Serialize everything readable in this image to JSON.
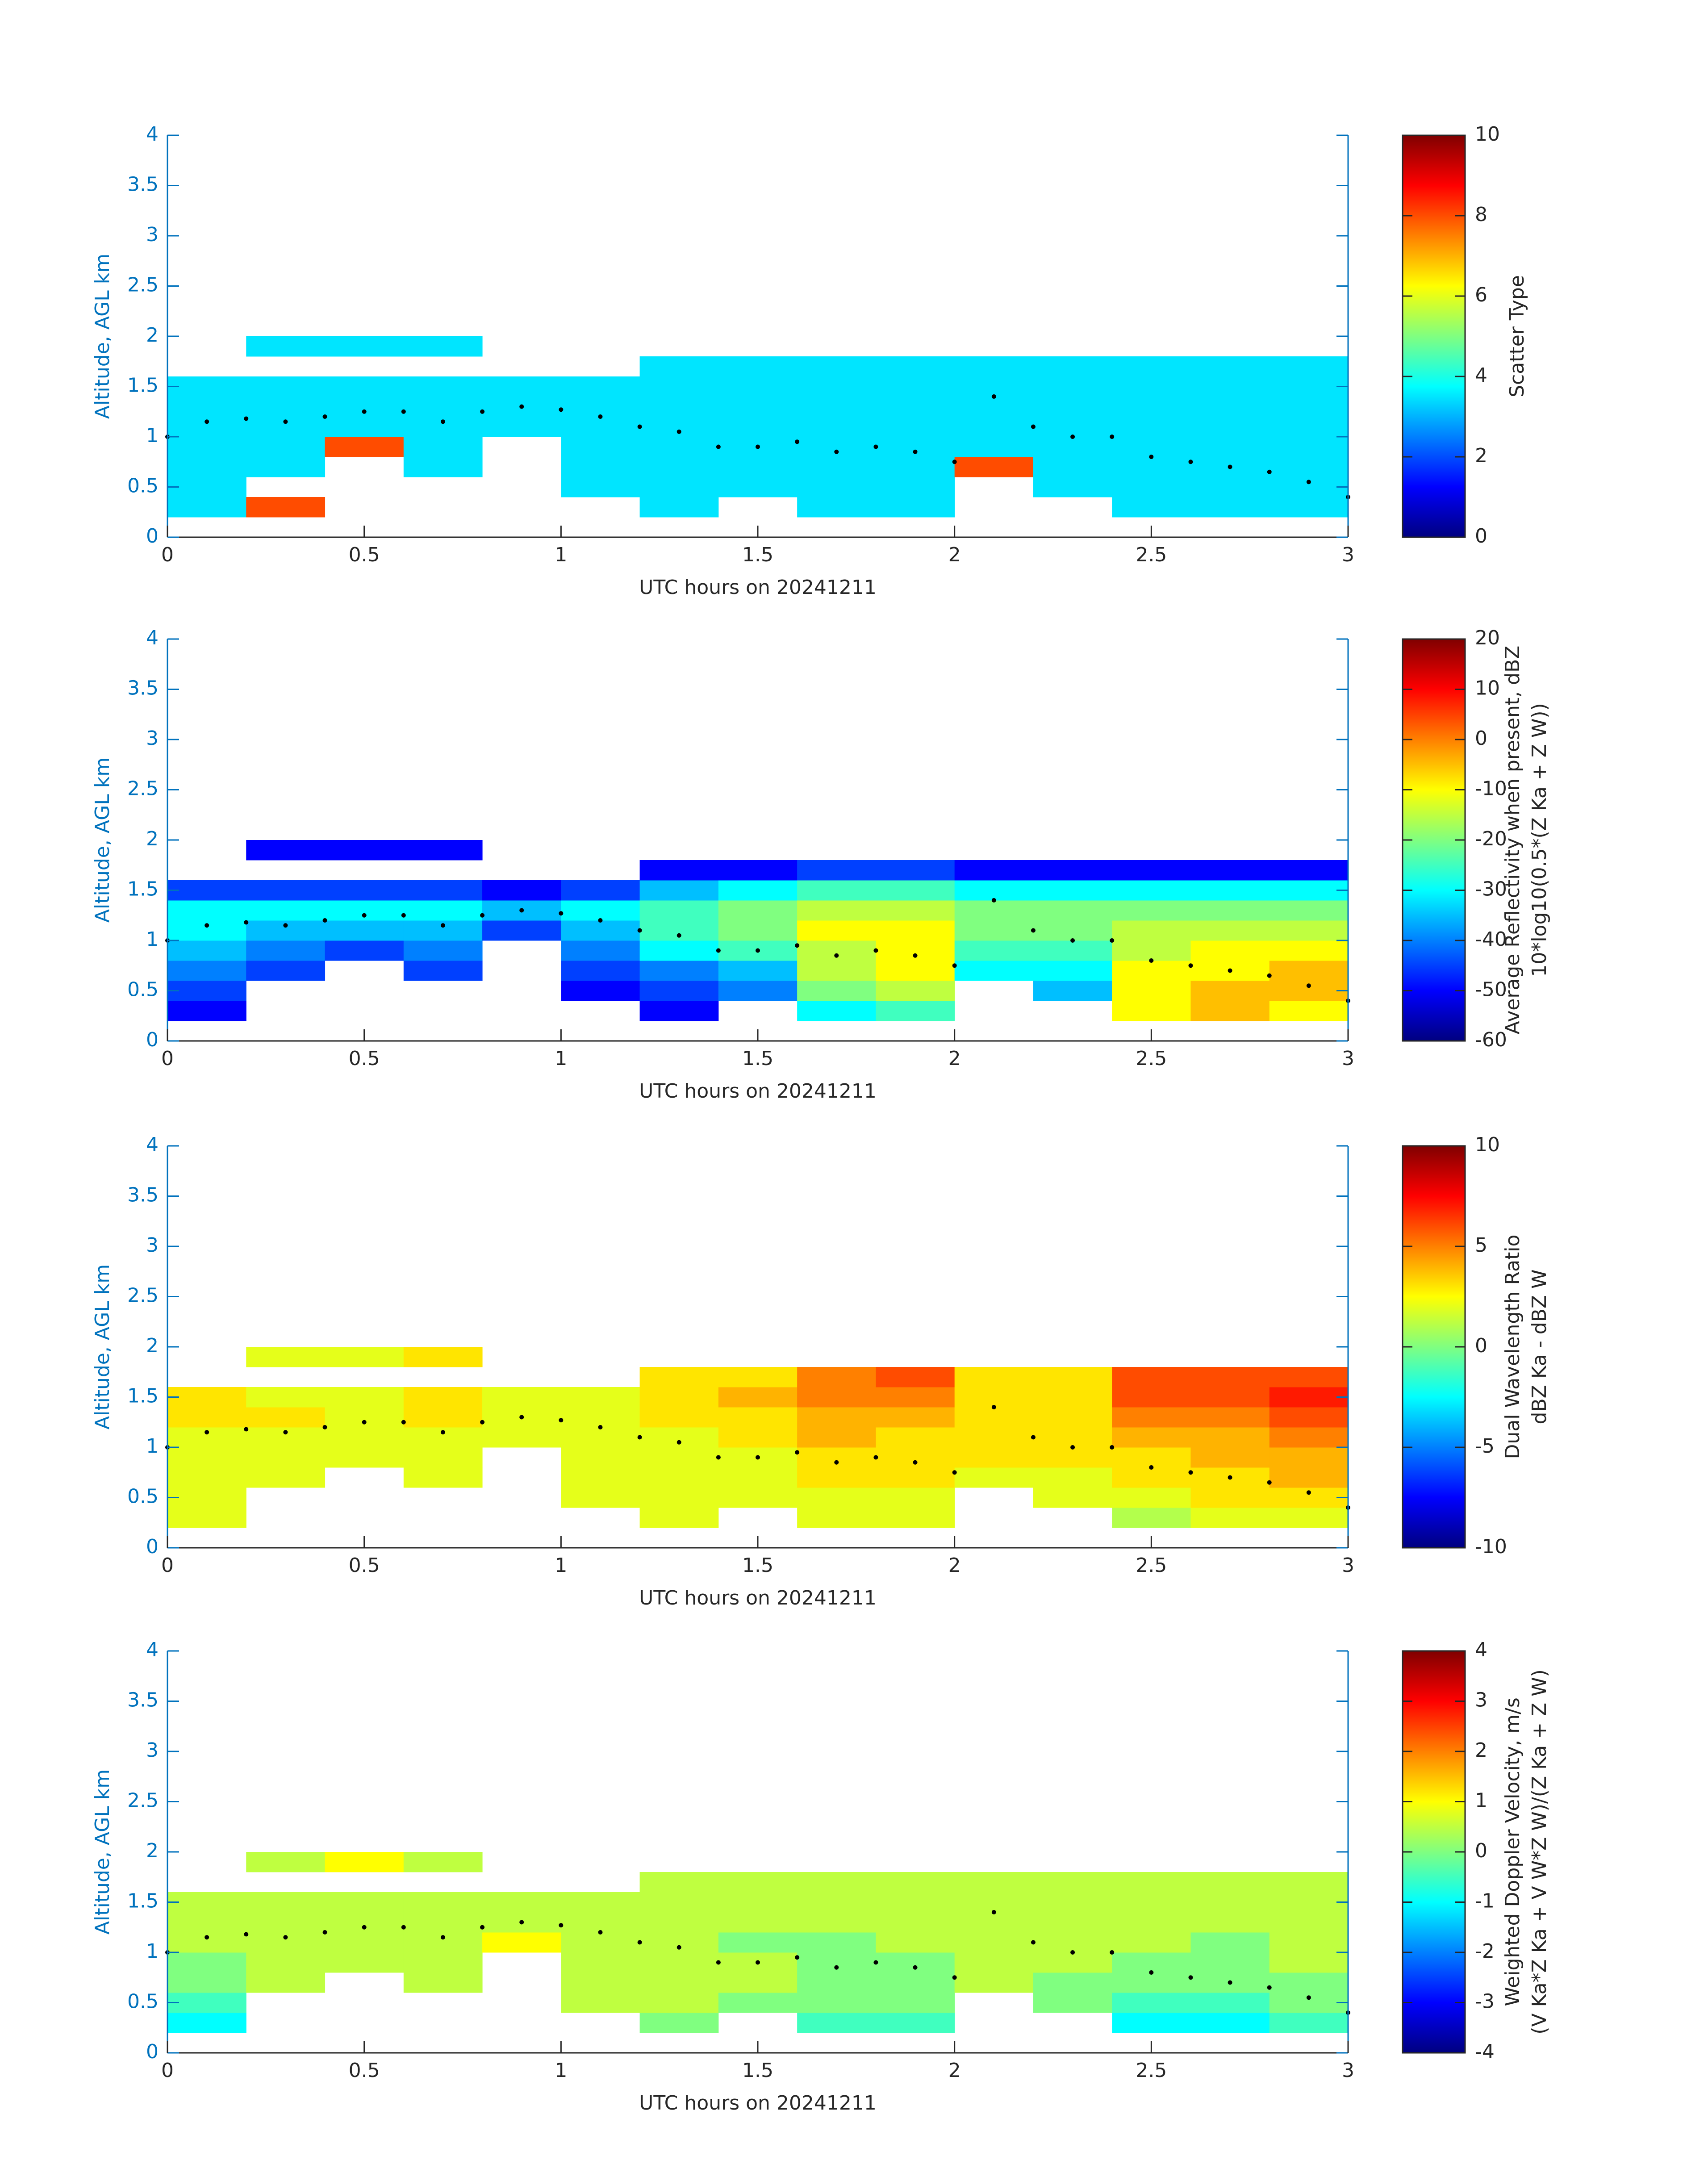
{
  "chart_data": [
    {
      "type": "heatmap",
      "xlabel": "UTC hours on 20241211",
      "ylabel": "Altitude, AGL km",
      "xlim": [
        0,
        3
      ],
      "ylim": [
        0,
        4
      ],
      "xticks": [
        0,
        0.5,
        1,
        1.5,
        2,
        2.5,
        3
      ],
      "yticks": [
        0,
        0.5,
        1,
        1.5,
        2,
        2.5,
        3,
        3.5,
        4
      ],
      "xbins": [
        0,
        0.2,
        0.4,
        0.6,
        0.8,
        1,
        1.2,
        1.4,
        1.6,
        1.8,
        2,
        2.2,
        2.4,
        2.6,
        2.8,
        3
      ],
      "ybins": [
        0.2,
        0.4,
        0.6,
        0.8,
        1,
        1.2,
        1.4,
        1.6,
        1.8,
        2
      ],
      "z": [
        [
          3.5,
          8,
          null,
          null,
          null,
          null,
          3.5,
          null,
          3.5,
          3.5,
          null,
          null,
          3.5,
          3.5,
          3.5
        ],
        [
          3.5,
          null,
          null,
          null,
          null,
          3.5,
          3.5,
          3.5,
          3.5,
          3.5,
          null,
          3.5,
          3.5,
          3.5,
          3.5
        ],
        [
          3.5,
          3.5,
          null,
          3.5,
          null,
          3.5,
          3.5,
          3.5,
          3.5,
          3.5,
          8,
          3.5,
          3.5,
          3.5,
          3.5
        ],
        [
          3.5,
          3.5,
          8,
          3.5,
          null,
          3.5,
          3.5,
          3.5,
          3.5,
          3.5,
          3.5,
          3.5,
          3.5,
          3.5,
          3.5
        ],
        [
          3.5,
          3.5,
          3.5,
          3.5,
          3.5,
          3.5,
          3.5,
          3.5,
          3.5,
          3.5,
          3.5,
          3.5,
          3.5,
          3.5,
          3.5
        ],
        [
          3.5,
          3.5,
          3.5,
          3.5,
          3.5,
          3.5,
          3.5,
          3.5,
          3.5,
          3.5,
          3.5,
          3.5,
          3.5,
          3.5,
          3.5
        ],
        [
          3.5,
          3.5,
          3.5,
          3.5,
          3.5,
          3.5,
          3.5,
          3.5,
          3.5,
          3.5,
          3.5,
          3.5,
          3.5,
          3.5,
          3.5
        ],
        [
          null,
          null,
          null,
          null,
          null,
          null,
          3.5,
          3.5,
          3.5,
          3.5,
          3.5,
          3.5,
          3.5,
          3.5,
          3.5
        ],
        [
          null,
          3.5,
          3.5,
          3.5,
          null,
          null,
          null,
          null,
          null,
          null,
          null,
          null,
          null,
          null,
          null
        ]
      ],
      "colormap": "jet",
      "clim": [
        0,
        10
      ],
      "cticks": [
        0,
        2,
        4,
        6,
        8,
        10
      ],
      "colorbar_label": [
        "Scatter Type"
      ],
      "overlay": {
        "color": "#000000",
        "x": [
          0,
          0.1,
          0.2,
          0.3,
          0.4,
          0.5,
          0.6,
          0.7,
          0.8,
          0.9,
          1,
          1.1,
          1.2,
          1.3,
          1.4,
          1.5,
          1.6,
          1.7,
          1.8,
          1.9,
          2,
          2.1,
          2.2,
          2.3,
          2.4,
          2.5,
          2.6,
          2.7,
          2.8,
          2.9,
          3
        ],
        "y": [
          1,
          1.15,
          1.18,
          1.15,
          1.2,
          1.25,
          1.25,
          1.15,
          1.25,
          1.3,
          1.27,
          1.2,
          1.1,
          1.05,
          0.9,
          0.9,
          0.95,
          0.85,
          0.9,
          0.85,
          0.75,
          1.4,
          1.1,
          1,
          1,
          0.8,
          0.75,
          0.7,
          0.65,
          0.55,
          0.4
        ]
      }
    },
    {
      "type": "heatmap",
      "xlabel": "UTC hours on 20241211",
      "ylabel": "Altitude, AGL km",
      "xlim": [
        0,
        3
      ],
      "ylim": [
        0,
        4
      ],
      "xticks": [
        0,
        0.5,
        1,
        1.5,
        2,
        2.5,
        3
      ],
      "yticks": [
        0,
        0.5,
        1,
        1.5,
        2,
        2.5,
        3,
        3.5,
        4
      ],
      "xbins": [
        0,
        0.2,
        0.4,
        0.6,
        0.8,
        1,
        1.2,
        1.4,
        1.6,
        1.8,
        2,
        2.2,
        2.4,
        2.6,
        2.8,
        3
      ],
      "ybins": [
        0.2,
        0.4,
        0.6,
        0.8,
        1,
        1.2,
        1.4,
        1.6,
        1.8,
        2
      ],
      "z": [
        [
          -50,
          null,
          null,
          null,
          null,
          null,
          -50,
          null,
          -30,
          -25,
          null,
          null,
          -10,
          -5,
          -10
        ],
        [
          -45,
          null,
          null,
          null,
          null,
          -50,
          -45,
          -40,
          -20,
          -15,
          null,
          -35,
          -10,
          -5,
          -5
        ],
        [
          -40,
          -45,
          null,
          -45,
          null,
          -45,
          -40,
          -35,
          -15,
          -10,
          -30,
          -30,
          -10,
          -10,
          -5
        ],
        [
          -35,
          -40,
          -45,
          -40,
          null,
          -40,
          -30,
          -25,
          -15,
          -10,
          -25,
          -25,
          -15,
          -10,
          -10
        ],
        [
          -30,
          -35,
          -35,
          -35,
          -45,
          -35,
          -25,
          -20,
          -10,
          -10,
          -20,
          -20,
          -15,
          -15,
          -15
        ],
        [
          -30,
          -30,
          -30,
          -30,
          -35,
          -30,
          -25,
          -20,
          -15,
          -15,
          -20,
          -20,
          -20,
          -20,
          -20
        ],
        [
          -45,
          -45,
          -45,
          -45,
          -50,
          -45,
          -35,
          -30,
          -25,
          -25,
          -30,
          -30,
          -30,
          -30,
          -30
        ],
        [
          null,
          null,
          null,
          null,
          null,
          null,
          -50,
          -50,
          -45,
          -45,
          -50,
          -50,
          -50,
          -50,
          -50
        ],
        [
          null,
          -50,
          -50,
          -50,
          null,
          null,
          null,
          null,
          null,
          null,
          null,
          null,
          null,
          null,
          null
        ]
      ],
      "colormap": "jet",
      "clim": [
        -60,
        20
      ],
      "cticks": [
        -60,
        -50,
        -40,
        -30,
        -20,
        -10,
        0,
        10,
        20
      ],
      "colorbar_label": [
        "Average Reflectivity when present, dBZ",
        "10*log10(0.5*(Z Ka + Z W))"
      ],
      "overlay": {
        "color": "#000000",
        "x": [
          0,
          0.1,
          0.2,
          0.3,
          0.4,
          0.5,
          0.6,
          0.7,
          0.8,
          0.9,
          1,
          1.1,
          1.2,
          1.3,
          1.4,
          1.5,
          1.6,
          1.7,
          1.8,
          1.9,
          2,
          2.1,
          2.2,
          2.3,
          2.4,
          2.5,
          2.6,
          2.7,
          2.8,
          2.9,
          3
        ],
        "y": [
          1,
          1.15,
          1.18,
          1.15,
          1.2,
          1.25,
          1.25,
          1.15,
          1.25,
          1.3,
          1.27,
          1.2,
          1.1,
          1.05,
          0.9,
          0.9,
          0.95,
          0.85,
          0.9,
          0.85,
          0.75,
          1.4,
          1.1,
          1,
          1,
          0.8,
          0.75,
          0.7,
          0.65,
          0.55,
          0.4
        ]
      }
    },
    {
      "type": "heatmap",
      "xlabel": "UTC hours on 20241211",
      "ylabel": "Altitude, AGL km",
      "xlim": [
        0,
        3
      ],
      "ylim": [
        0,
        4
      ],
      "xticks": [
        0,
        0.5,
        1,
        1.5,
        2,
        2.5,
        3
      ],
      "yticks": [
        0,
        0.5,
        1,
        1.5,
        2,
        2.5,
        3,
        3.5,
        4
      ],
      "xbins": [
        0,
        0.2,
        0.4,
        0.6,
        0.8,
        1,
        1.2,
        1.4,
        1.6,
        1.8,
        2,
        2.2,
        2.4,
        2.6,
        2.8,
        3
      ],
      "ybins": [
        0.2,
        0.4,
        0.6,
        0.8,
        1,
        1.2,
        1.4,
        1.6,
        1.8,
        2
      ],
      "z": [
        [
          2,
          null,
          null,
          null,
          null,
          null,
          2,
          null,
          2,
          2,
          null,
          null,
          1,
          2,
          2
        ],
        [
          2,
          null,
          null,
          null,
          null,
          2,
          2,
          2,
          2,
          2,
          null,
          2,
          2,
          3,
          3
        ],
        [
          2,
          2,
          null,
          2,
          null,
          2,
          2,
          2,
          3,
          3,
          2,
          2,
          3,
          3,
          4
        ],
        [
          2,
          2,
          2,
          2,
          null,
          2,
          2,
          2,
          3,
          3,
          3,
          3,
          3,
          4,
          4
        ],
        [
          2,
          2,
          2,
          2,
          2,
          2,
          2,
          3,
          4,
          3,
          3,
          3,
          4,
          4,
          5
        ],
        [
          3,
          3,
          2,
          3,
          2,
          2,
          3,
          3,
          4,
          4,
          3,
          3,
          5,
          5,
          6
        ],
        [
          3,
          2,
          2,
          3,
          2,
          2,
          3,
          4,
          5,
          5,
          3,
          3,
          6,
          6,
          7
        ],
        [
          null,
          null,
          null,
          null,
          null,
          null,
          3,
          3,
          5,
          6,
          3,
          3,
          6,
          6,
          6
        ],
        [
          null,
          2,
          2,
          3,
          null,
          null,
          null,
          null,
          null,
          null,
          null,
          null,
          null,
          null,
          null
        ]
      ],
      "colormap": "jet",
      "clim": [
        -10,
        10
      ],
      "cticks": [
        -10,
        -5,
        0,
        5,
        10
      ],
      "colorbar_label": [
        "Dual Wavelength Ratio",
        "dBZ Ka - dBZ W"
      ],
      "overlay": {
        "color": "#000000",
        "x": [
          0,
          0.1,
          0.2,
          0.3,
          0.4,
          0.5,
          0.6,
          0.7,
          0.8,
          0.9,
          1,
          1.1,
          1.2,
          1.3,
          1.4,
          1.5,
          1.6,
          1.7,
          1.8,
          1.9,
          2,
          2.1,
          2.2,
          2.3,
          2.4,
          2.5,
          2.6,
          2.7,
          2.8,
          2.9,
          3
        ],
        "y": [
          1,
          1.15,
          1.18,
          1.15,
          1.2,
          1.25,
          1.25,
          1.15,
          1.25,
          1.3,
          1.27,
          1.2,
          1.1,
          1.05,
          0.9,
          0.9,
          0.95,
          0.85,
          0.9,
          0.85,
          0.75,
          1.4,
          1.1,
          1,
          1,
          0.8,
          0.75,
          0.7,
          0.65,
          0.55,
          0.4
        ]
      }
    },
    {
      "type": "heatmap",
      "xlabel": "UTC hours on 20241211",
      "ylabel": "Altitude, AGL km",
      "xlim": [
        0,
        3
      ],
      "ylim": [
        0,
        4
      ],
      "xticks": [
        0,
        0.5,
        1,
        1.5,
        2,
        2.5,
        3
      ],
      "yticks": [
        0,
        0.5,
        1,
        1.5,
        2,
        2.5,
        3,
        3.5,
        4
      ],
      "xbins": [
        0,
        0.2,
        0.4,
        0.6,
        0.8,
        1,
        1.2,
        1.4,
        1.6,
        1.8,
        2,
        2.2,
        2.4,
        2.6,
        2.8,
        3
      ],
      "ybins": [
        0.2,
        0.4,
        0.6,
        0.8,
        1,
        1.2,
        1.4,
        1.6,
        1.8,
        2
      ],
      "z": [
        [
          -1,
          null,
          null,
          null,
          null,
          null,
          0,
          null,
          -0.5,
          -0.5,
          null,
          null,
          -1,
          -1,
          -0.5
        ],
        [
          -0.5,
          null,
          null,
          null,
          null,
          0.5,
          0.5,
          0,
          0,
          0,
          null,
          0,
          -0.5,
          -0.5,
          0
        ],
        [
          0,
          0.5,
          null,
          0.5,
          null,
          0.5,
          0.5,
          0.5,
          0,
          0,
          0.5,
          0,
          0,
          0,
          0
        ],
        [
          0,
          0.5,
          0.5,
          0.5,
          null,
          0.5,
          0.5,
          0.5,
          0,
          0,
          0.5,
          0.5,
          0,
          0,
          0.5
        ],
        [
          0.5,
          0.5,
          0.5,
          0.5,
          1,
          0.5,
          0.5,
          0,
          0,
          0.5,
          0.5,
          0.5,
          0.5,
          0,
          0.5
        ],
        [
          0.5,
          0.5,
          0.5,
          0.5,
          0.5,
          0.5,
          0.5,
          0.5,
          0.5,
          0.5,
          0.5,
          0.5,
          0.5,
          0.5,
          0.5
        ],
        [
          0.5,
          0.5,
          0.5,
          0.5,
          0.5,
          0.5,
          0.5,
          0.5,
          0.5,
          0.5,
          0.5,
          0.5,
          0.5,
          0.5,
          0.5
        ],
        [
          null,
          null,
          null,
          null,
          null,
          null,
          0.5,
          0.5,
          0.5,
          0.5,
          0.5,
          0.5,
          0.5,
          0.5,
          0.5
        ],
        [
          null,
          0.5,
          1,
          0.5,
          null,
          null,
          null,
          null,
          null,
          null,
          null,
          null,
          null,
          null,
          null
        ]
      ],
      "colormap": "jet",
      "clim": [
        -4,
        4
      ],
      "cticks": [
        -4,
        -3,
        -2,
        -1,
        0,
        1,
        2,
        3,
        4
      ],
      "colorbar_label": [
        "Weighted Doppler Velocity, m/s",
        "(V Ka*Z Ka + V W*Z W)/(Z Ka + Z W)"
      ],
      "overlay": {
        "color": "#000000",
        "x": [
          0,
          0.1,
          0.2,
          0.3,
          0.4,
          0.5,
          0.6,
          0.7,
          0.8,
          0.9,
          1,
          1.1,
          1.2,
          1.3,
          1.4,
          1.5,
          1.6,
          1.7,
          1.8,
          1.9,
          2,
          2.1,
          2.2,
          2.3,
          2.4,
          2.5,
          2.6,
          2.7,
          2.8,
          2.9,
          3
        ],
        "y": [
          1,
          1.15,
          1.18,
          1.15,
          1.2,
          1.25,
          1.25,
          1.15,
          1.25,
          1.3,
          1.27,
          1.2,
          1.1,
          1.05,
          0.9,
          0.9,
          0.95,
          0.85,
          0.9,
          0.85,
          0.75,
          1.4,
          1.1,
          1,
          1,
          0.8,
          0.75,
          0.7,
          0.65,
          0.55,
          0.4
        ]
      }
    }
  ]
}
